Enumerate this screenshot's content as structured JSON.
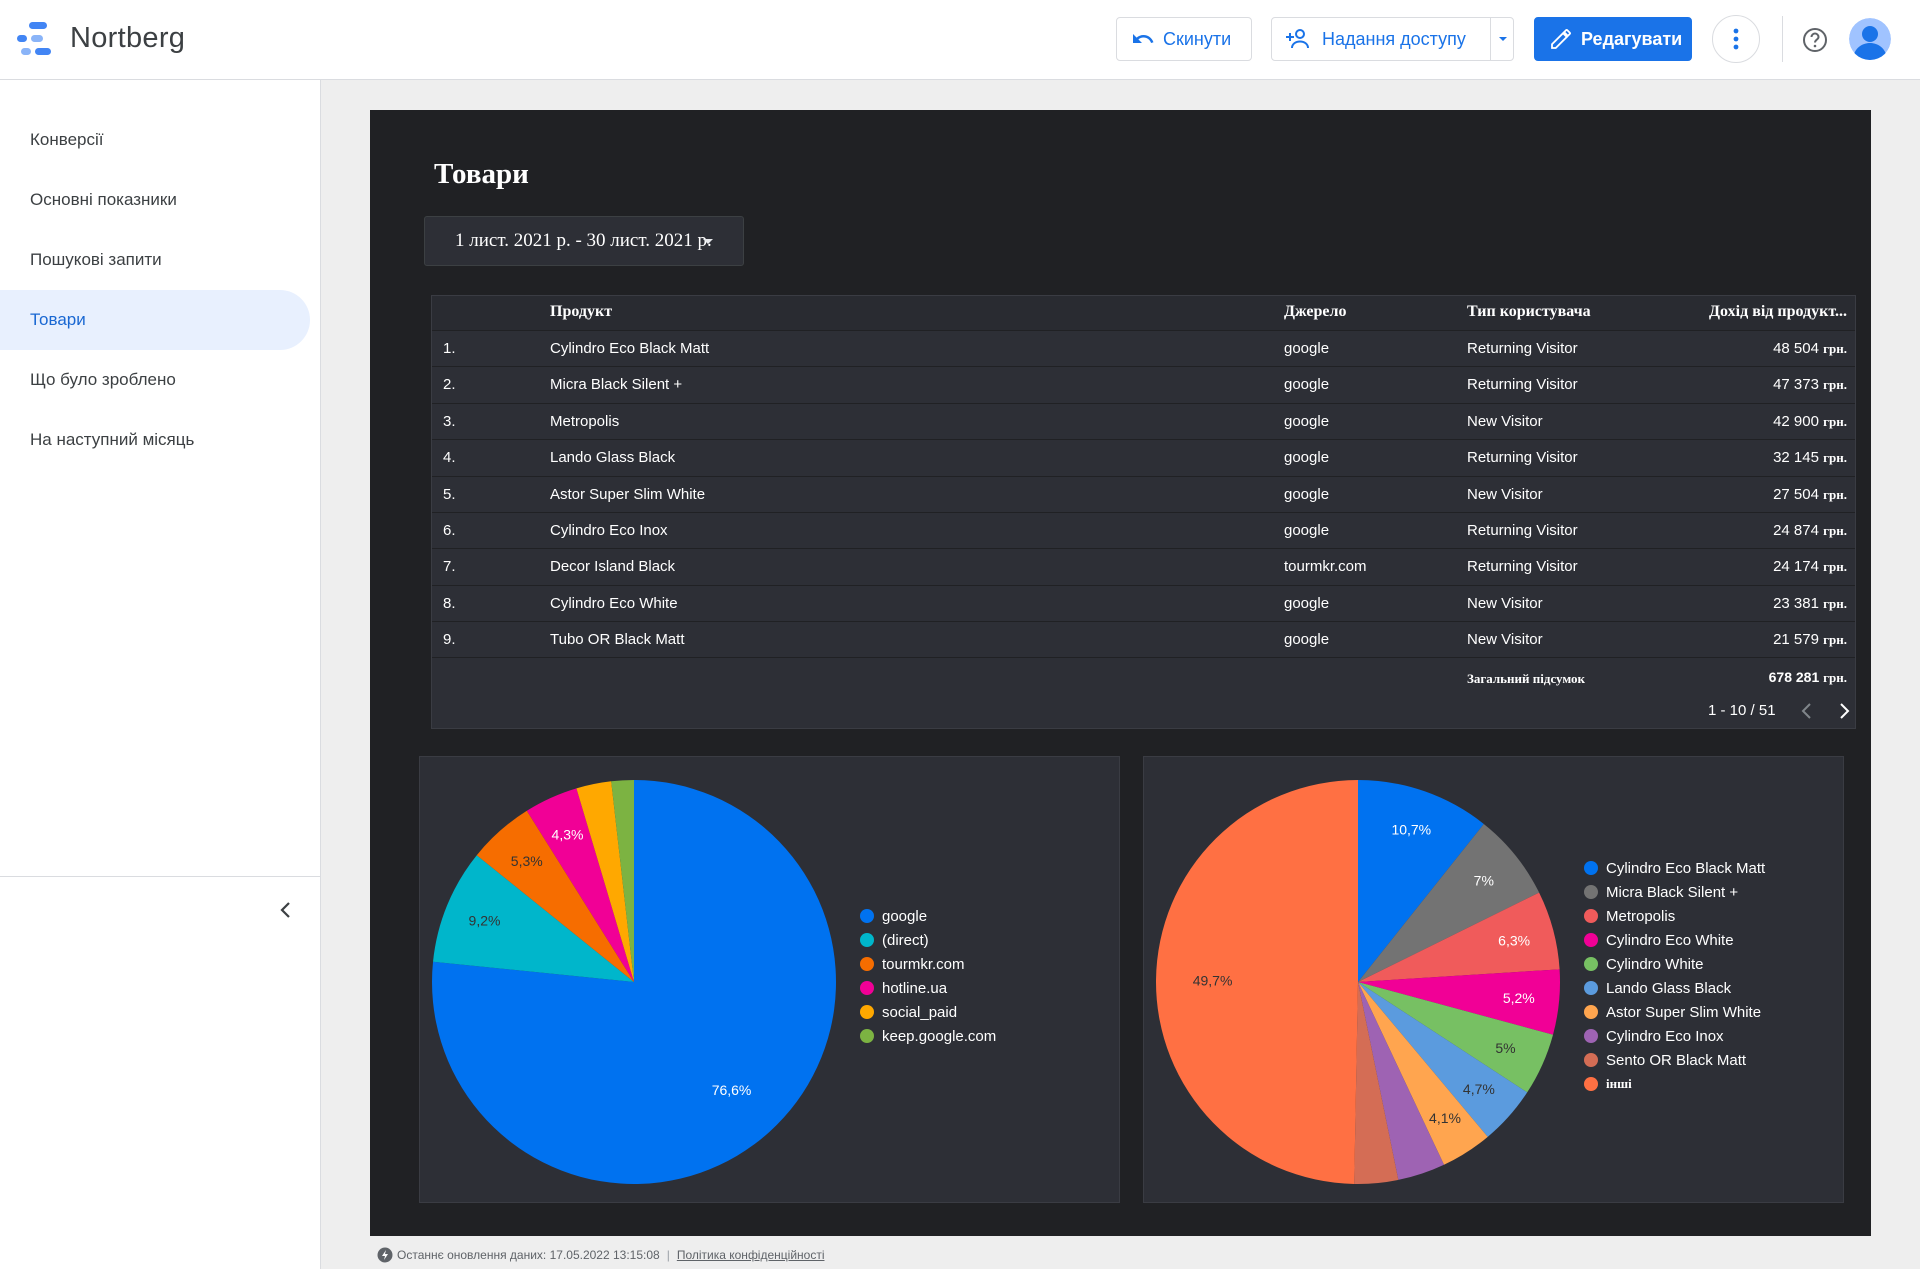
{
  "header": {
    "app_title": "Nortberg",
    "reset_label": "Скинути",
    "share_label": "Надання доступу",
    "edit_label": "Редагувати",
    "accent_color": "#1a73e8"
  },
  "sidebar": {
    "items": [
      {
        "label": "Конверсії",
        "active": false
      },
      {
        "label": "Основні показники",
        "active": false
      },
      {
        "label": "Пошукові запити",
        "active": false
      },
      {
        "label": "Товари",
        "active": true
      },
      {
        "label": "Що було зроблено",
        "active": false
      },
      {
        "label": "На наступний місяць",
        "active": false
      }
    ]
  },
  "report": {
    "title": "Товари",
    "date_range": "1 лист. 2021 р. - 30 лист. 2021 р.",
    "table": {
      "columns": [
        "Продукт",
        "Джерело",
        "Тип користувача",
        "Дохід від продукт..."
      ],
      "currency": "грн.",
      "rows": [
        {
          "idx": "1.",
          "product": "Cylindro Eco Black Matt",
          "source": "google",
          "user_type": "Returning Visitor",
          "revenue": "48 504"
        },
        {
          "idx": "2.",
          "product": "Micra Black Silent +",
          "source": "google",
          "user_type": "Returning Visitor",
          "revenue": "47 373"
        },
        {
          "idx": "3.",
          "product": "Metropolis",
          "source": "google",
          "user_type": "New Visitor",
          "revenue": "42 900"
        },
        {
          "idx": "4.",
          "product": "Lando Glass Black",
          "source": "google",
          "user_type": "Returning Visitor",
          "revenue": "32 145"
        },
        {
          "idx": "5.",
          "product": "Astor Super Slim White",
          "source": "google",
          "user_type": "New Visitor",
          "revenue": "27 504"
        },
        {
          "idx": "6.",
          "product": "Cylindro Eco Inox",
          "source": "google",
          "user_type": "Returning Visitor",
          "revenue": "24 874"
        },
        {
          "idx": "7.",
          "product": "Decor Island Black",
          "source": "tourmkr.com",
          "user_type": "Returning Visitor",
          "revenue": "24 174"
        },
        {
          "idx": "8.",
          "product": "Cylindro Eco White",
          "source": "google",
          "user_type": "New Visitor",
          "revenue": "23 381"
        },
        {
          "idx": "9.",
          "product": "Tubo OR Black Matt",
          "source": "google",
          "user_type": "New Visitor",
          "revenue": "21 579"
        }
      ],
      "total_label": "Загальний підсумок",
      "total_value": "678 281",
      "pagination": "1 - 10 / 51"
    }
  },
  "chart_data": [
    {
      "type": "pie",
      "title": "",
      "labels": [
        "google",
        "(direct)",
        "tourmkr.com",
        "hotline.ua",
        "social_paid",
        "keep.google.com"
      ],
      "values": [
        76.6,
        9.2,
        5.3,
        4.3,
        2.8,
        1.8
      ],
      "value_labels": [
        "76,6%",
        "9,2%",
        "5,3%",
        "4,3%",
        "",
        ""
      ],
      "colors": [
        "#0072f0",
        "#00b6cb",
        "#f66d00",
        "#f10096",
        "#ffa800",
        "#7cb342"
      ],
      "legend_position": "right"
    },
    {
      "type": "pie",
      "title": "",
      "labels": [
        "Cylindro Eco Black Matt",
        "Micra Black Silent +",
        "Metropolis",
        "Cylindro Eco White",
        "Cylindro White",
        "Lando Glass Black",
        "Astor Super Slim White",
        "Cylindro Eco Inox",
        "Sento OR Black Matt",
        "інші"
      ],
      "values": [
        10.7,
        7.0,
        6.3,
        5.2,
        5.0,
        4.7,
        4.1,
        3.8,
        3.5,
        49.7
      ],
      "value_labels": [
        "10,7%",
        "7%",
        "6,3%",
        "5,2%",
        "5%",
        "4,7%",
        "4,1%",
        "",
        "",
        "49,7%"
      ],
      "colors": [
        "#0072f0",
        "#737373",
        "#f05b5b",
        "#f10096",
        "#77c063",
        "#5b9bde",
        "#ffa54f",
        "#9e63b3",
        "#d46d55",
        "#ff7043"
      ],
      "legend_position": "right"
    }
  ],
  "footer": {
    "last_update": "Останнє оновлення даних: 17.05.2022 13:15:08",
    "privacy": "Політика конфіденційності"
  }
}
